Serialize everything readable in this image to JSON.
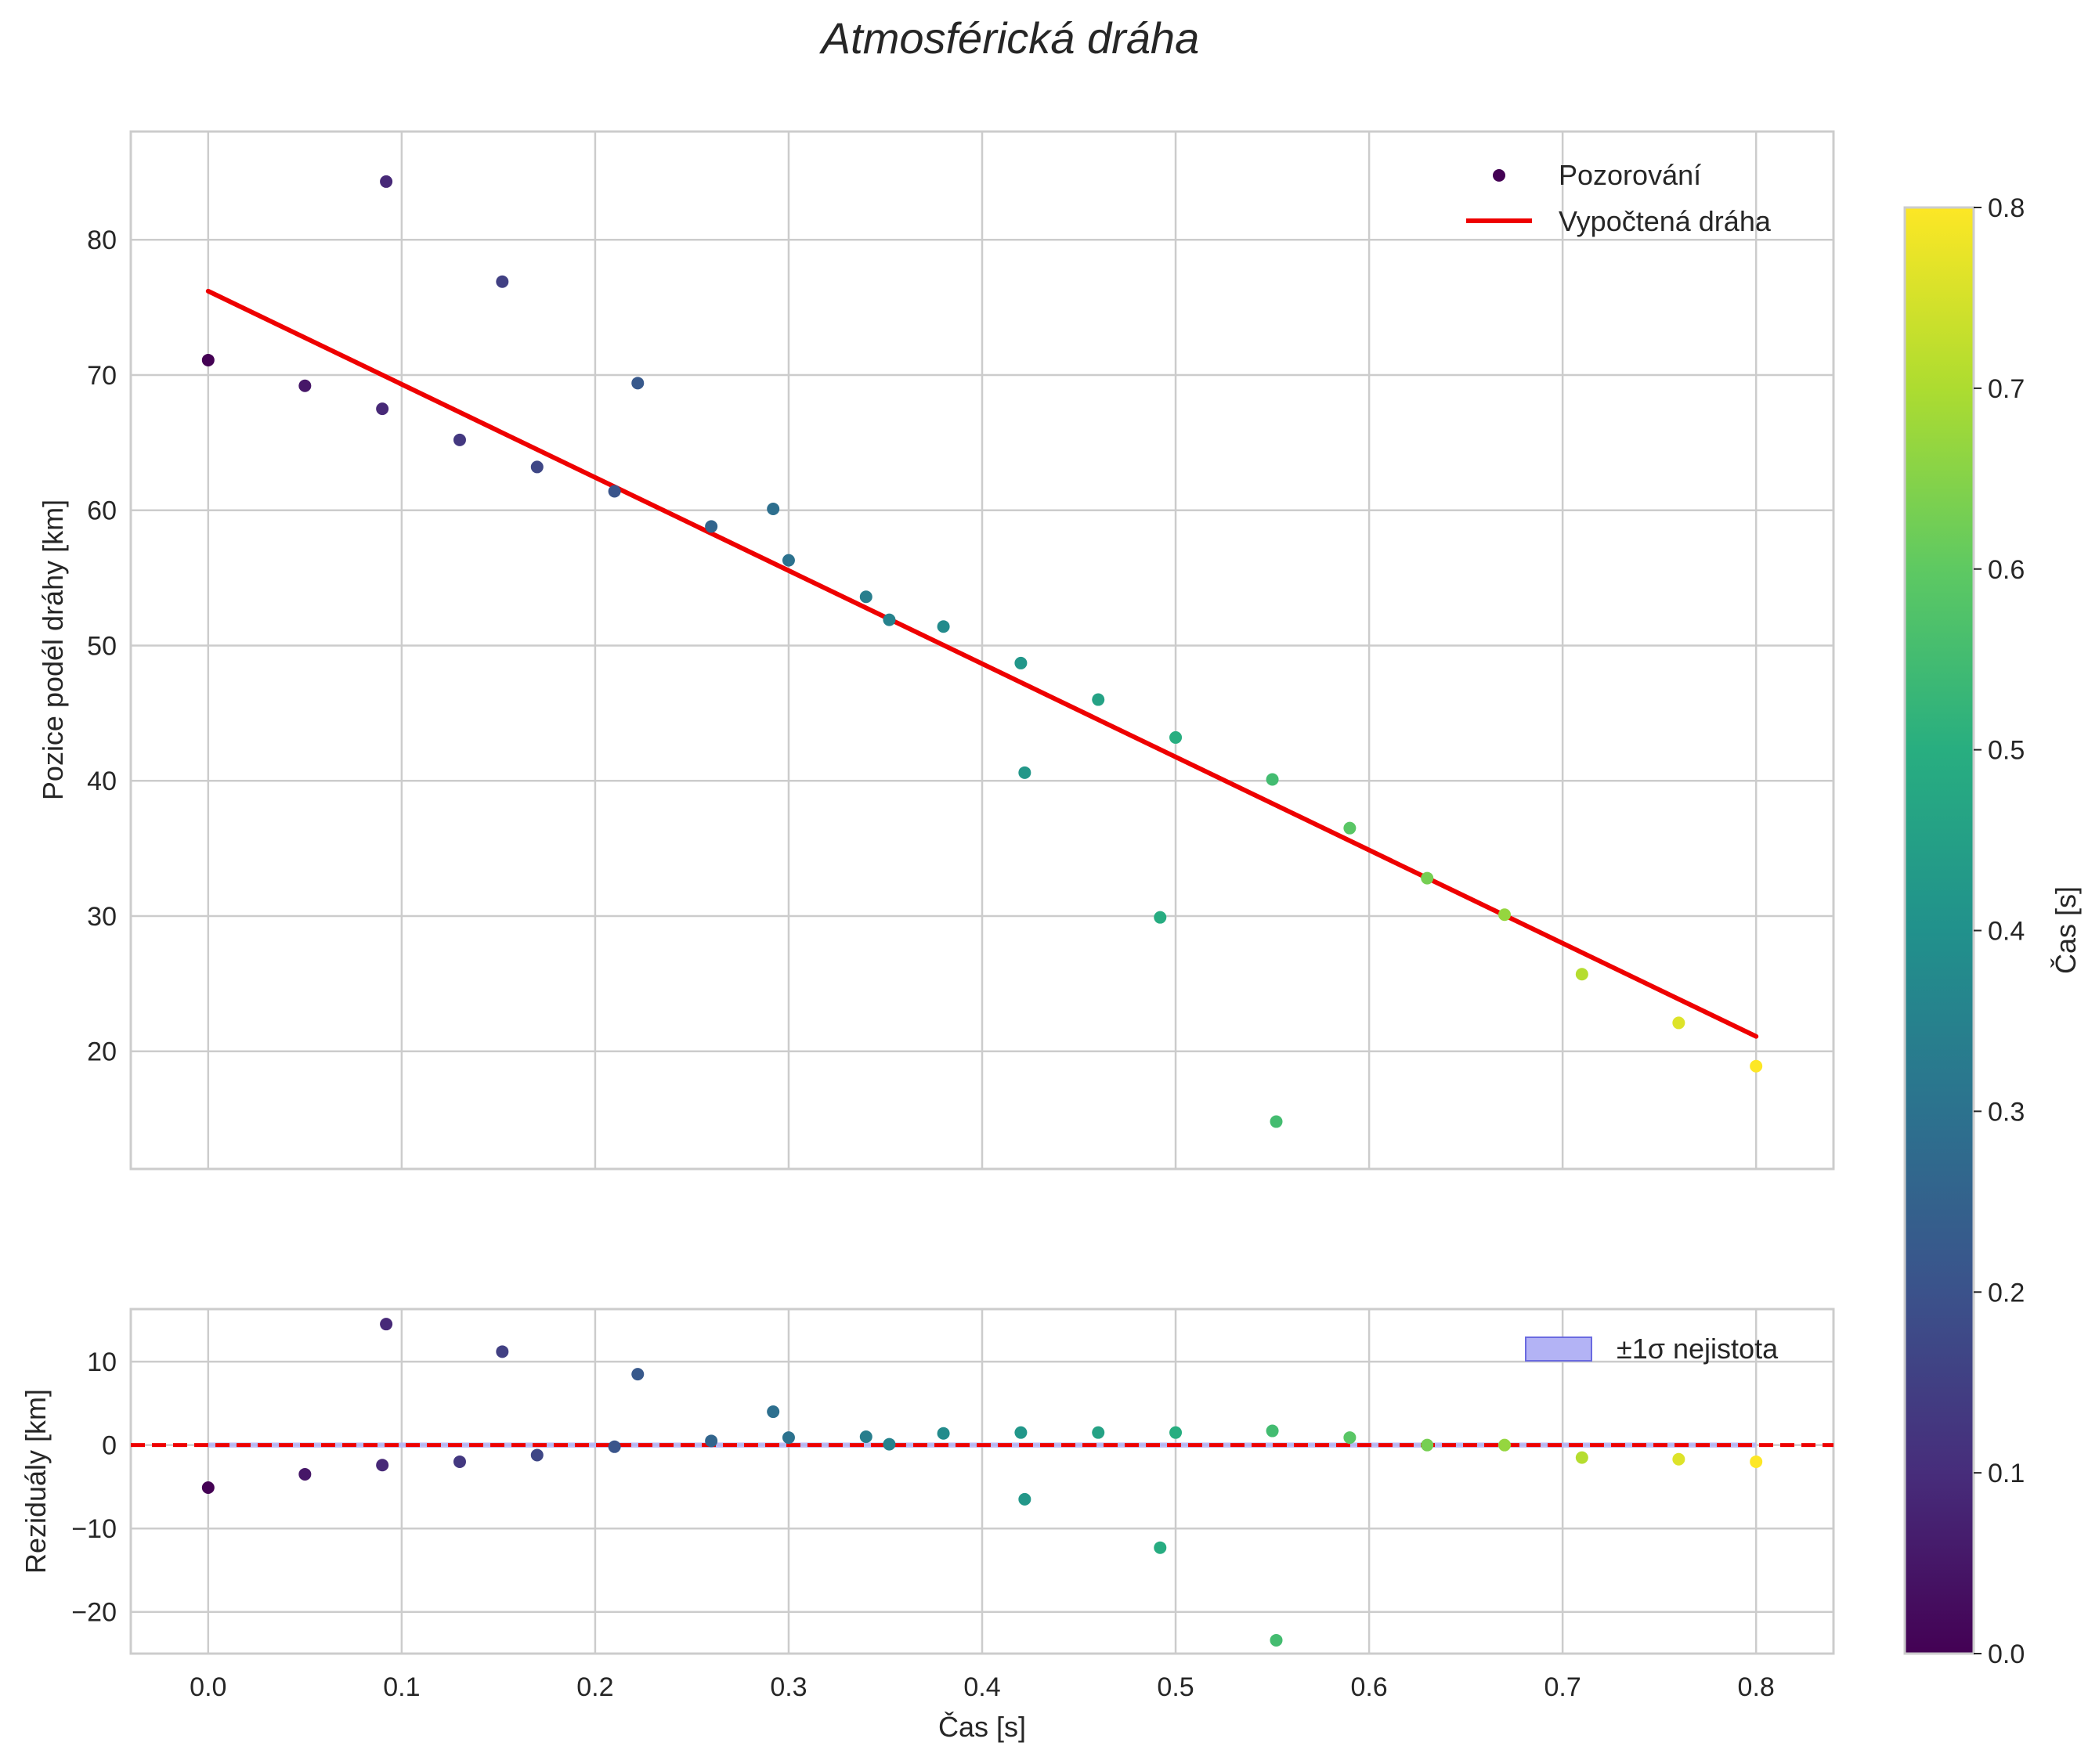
{
  "title": "Atmosférická dráha",
  "chart_data": [
    {
      "panel": "top",
      "type": "scatter",
      "xlabel": "",
      "ylabel": "Pozice podél dráhy [km]",
      "xlim": [
        -0.04,
        0.84
      ],
      "ylim": [
        11.3,
        88.0
      ],
      "xticks": [
        "0.0",
        "0.1",
        "0.2",
        "0.3",
        "0.4",
        "0.5",
        "0.6",
        "0.7",
        "0.8"
      ],
      "yticks": [
        "20",
        "30",
        "40",
        "50",
        "60",
        "70",
        "80"
      ],
      "grid": true,
      "legend_position": "top-right",
      "legend": [
        {
          "key": "obs",
          "label": "Pozorování"
        },
        {
          "key": "fit",
          "label": "Vypočtená dráha"
        }
      ],
      "series": [
        {
          "name": "Pozorování",
          "type": "scatter",
          "x": [
            0.0,
            0.05,
            0.09,
            0.092,
            0.13,
            0.152,
            0.17,
            0.21,
            0.222,
            0.26,
            0.292,
            0.3,
            0.34,
            0.352,
            0.38,
            0.42,
            0.422,
            0.46,
            0.492,
            0.5,
            0.55,
            0.552,
            0.59,
            0.63,
            0.67,
            0.71,
            0.76,
            0.8
          ],
          "y": [
            71.1,
            69.2,
            67.5,
            84.3,
            65.2,
            76.9,
            63.2,
            61.4,
            69.4,
            58.8,
            60.1,
            56.3,
            53.6,
            51.9,
            51.4,
            48.7,
            40.6,
            46.0,
            29.9,
            43.2,
            40.1,
            14.8,
            36.5,
            32.8,
            30.1,
            25.7,
            22.1,
            18.9
          ]
        },
        {
          "name": "Vypočtená dráha",
          "type": "line",
          "color": "#ee0000",
          "x": [
            0.0,
            0.8
          ],
          "y": [
            76.2,
            21.1
          ]
        }
      ]
    },
    {
      "panel": "bottom",
      "type": "scatter",
      "xlabel": "Čas [s]",
      "ylabel": "Reziduály [km]",
      "xlim": [
        -0.04,
        0.84
      ],
      "ylim": [
        -25.0,
        16.3
      ],
      "xticks": [
        "0.0",
        "0.1",
        "0.2",
        "0.3",
        "0.4",
        "0.5",
        "0.6",
        "0.7",
        "0.8"
      ],
      "yticks": [
        "−20",
        "−10",
        "0",
        "10"
      ],
      "grid": true,
      "legend_position": "top-right",
      "legend": [
        {
          "key": "band",
          "label": "±1σ nejistota"
        }
      ],
      "uncertainty_band": [
        -0.3,
        0.3
      ],
      "zero_line": {
        "y": 0,
        "color": "#ee0000",
        "style": "dashed"
      },
      "series": [
        {
          "name": "Reziduály",
          "type": "scatter",
          "x": [
            0.0,
            0.05,
            0.09,
            0.092,
            0.13,
            0.152,
            0.17,
            0.21,
            0.222,
            0.26,
            0.292,
            0.3,
            0.34,
            0.352,
            0.38,
            0.42,
            0.422,
            0.46,
            0.492,
            0.5,
            0.55,
            0.552,
            0.59,
            0.63,
            0.67,
            0.71,
            0.76,
            0.8
          ],
          "y": [
            -5.1,
            -3.5,
            -2.4,
            14.5,
            -2.0,
            11.2,
            -1.2,
            -0.2,
            8.5,
            0.5,
            4.0,
            0.9,
            1.0,
            0.1,
            1.4,
            1.5,
            -6.5,
            1.5,
            -12.3,
            1.5,
            1.7,
            -23.4,
            0.9,
            0.0,
            0.0,
            -1.5,
            -1.7,
            -2.0
          ]
        }
      ]
    }
  ],
  "colorbar": {
    "label": "Čas [s]",
    "range": [
      0.0,
      0.8
    ],
    "colormap": "viridis",
    "ticks": [
      "0.0",
      "0.1",
      "0.2",
      "0.3",
      "0.4",
      "0.5",
      "0.6",
      "0.7",
      "0.8"
    ]
  },
  "colors": {
    "fit_line": "#ee0000",
    "band_fill": "#b3b3f5",
    "band_edge": "#6a6ae0",
    "grid": "#cccccc",
    "axes_edge": "#cccccc"
  }
}
